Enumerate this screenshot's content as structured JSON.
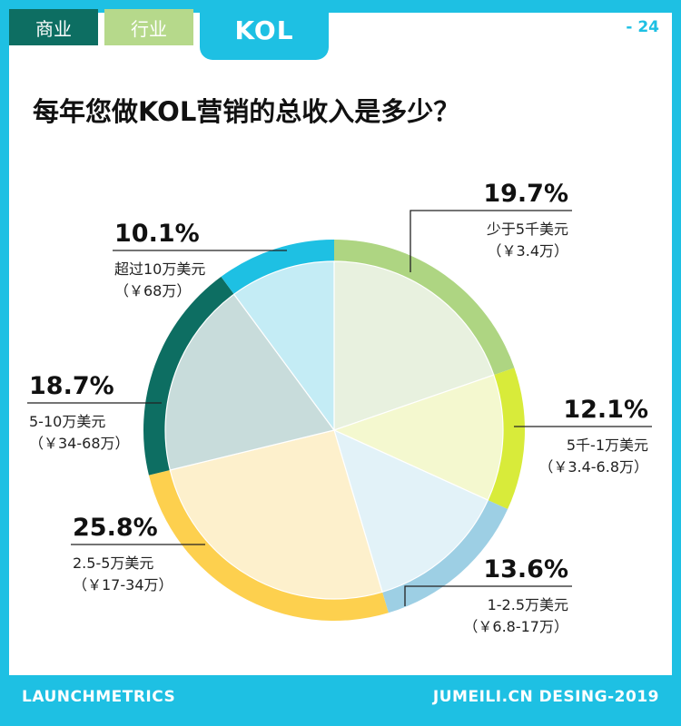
{
  "header": {
    "tabs": [
      {
        "label": "商业",
        "color": "#0d6e62"
      },
      {
        "label": "行业",
        "color": "#b6d98b"
      },
      {
        "label": "KOL",
        "color": "#1ec0e3"
      }
    ],
    "page_number": "- 24"
  },
  "chart_data": {
    "type": "pie",
    "title": "每年您做KOL营销的总收入是多少？",
    "slices": [
      {
        "name": "少于5千美元",
        "sub": "（￥3.4万）",
        "value": 19.7,
        "label": "19.7%",
        "color": "#aed582",
        "fill": "#e8f1df"
      },
      {
        "name": "5千-1万美元",
        "sub": "（￥3.4-6.8万）",
        "value": 12.1,
        "label": "12.1%",
        "color": "#d8eb3a",
        "fill": "#f4f8cf"
      },
      {
        "name": "1-2.5万美元",
        "sub": "（￥6.8-17万）",
        "value": 13.6,
        "label": "13.6%",
        "color": "#9dcfe4",
        "fill": "#e2f2f8"
      },
      {
        "name": "2.5-5万美元",
        "sub": "（￥17-34万）",
        "value": 25.8,
        "label": "25.8%",
        "color": "#fdd04e",
        "fill": "#fdf0cc"
      },
      {
        "name": "5-10万美元",
        "sub": "（￥34-68万）",
        "value": 18.7,
        "label": "18.7%",
        "color": "#0d6e62",
        "fill": "#c8dcdb"
      },
      {
        "name": "超过10万美元",
        "sub": "（￥68万）",
        "value": 10.1,
        "label": "10.1%",
        "color": "#1ec0e3",
        "fill": "#c4ecf5"
      }
    ]
  },
  "footer": {
    "left": "LAUNCHMETRICS",
    "right": "JUMEILI.CN DESING-2019"
  }
}
